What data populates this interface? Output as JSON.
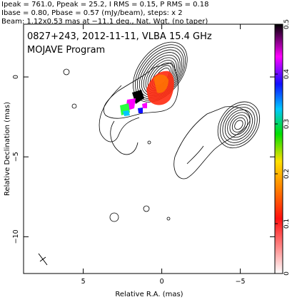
{
  "header": {
    "line1": "Ipeak = 761.0, Ppeak = 25.2, I RMS = 0.15, P RMS = 0.18",
    "line2": "Ibase = 0.80, Pbase = 0.57 (mJy/beam), steps: x 2",
    "line3": "Beam: 1.12x0.53 mas at −11.1 deg., Nat. Wgt. (no taper)"
  },
  "plot": {
    "title": "0827+243, 2012-11-11, VLBA 15.4 GHz",
    "subtitle": "MOJAVE Program"
  },
  "chart_data": {
    "type": "heatmap",
    "description_of_layers": [
      "total-intensity contours",
      "fractional polarization color map"
    ],
    "xlabel": "Relative R.A. (mas)",
    "ylabel": "Relative Declination (mas)",
    "xlim": [
      8.8,
      -7.2
    ],
    "ylim": [
      -12.3,
      3.3
    ],
    "x_ticks": [
      5,
      0,
      -5
    ],
    "x_tick_labels": [
      "5",
      "0",
      "−5"
    ],
    "y_ticks": [
      0,
      -5,
      -10
    ],
    "y_tick_labels": [
      "0",
      "−5",
      "−10"
    ],
    "colorbar": {
      "range": [
        0,
        0.5
      ],
      "ticks": [
        0,
        0.1,
        0.2,
        0.3,
        0.4,
        0.5
      ],
      "tick_labels": [
        "0",
        "0.1",
        "0.2",
        "0.3",
        "0.4",
        "0.5"
      ],
      "colors": [
        "#ffffff",
        "#ff8080",
        "#ff0000",
        "#ff8000",
        "#ffff00",
        "#00ff00",
        "#00c0ff",
        "#0000ff",
        "#ff00ff",
        "#000000"
      ]
    },
    "core": {
      "x": 0.0,
      "y": 0.0
    },
    "jet_component": {
      "x": -4.9,
      "y": -3.0
    },
    "contour_levels_mJy_beam": [
      0.8,
      1.6,
      3.2,
      6.4,
      12.8,
      25.6,
      51.2,
      102.4,
      204.8,
      409.6
    ],
    "beam": {
      "major_mas": 1.12,
      "minor_mas": 0.53,
      "pa_deg": -11.1
    },
    "grid": false
  }
}
